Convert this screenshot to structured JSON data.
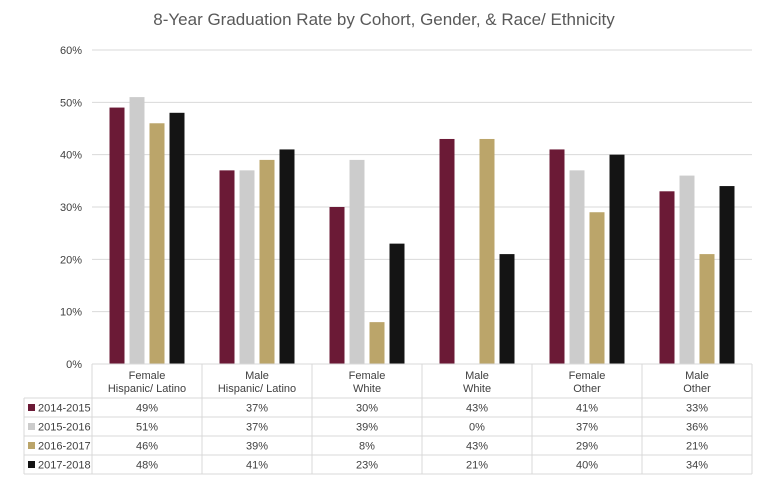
{
  "chart_data": {
    "type": "bar",
    "title": "8-Year Graduation Rate by Cohort, Gender, & Race/ Ethnicity",
    "xlabel": "",
    "ylabel": "",
    "ylim": [
      0,
      60
    ],
    "yticks": [
      "0%",
      "10%",
      "20%",
      "30%",
      "40%",
      "50%",
      "60%"
    ],
    "grid": true,
    "legend": "data-table",
    "categories": [
      [
        "Female",
        "Hispanic/ Latino"
      ],
      [
        "Male",
        "Hispanic/ Latino"
      ],
      [
        "Female",
        "White"
      ],
      [
        "Male",
        "White"
      ],
      [
        "Female",
        "Other"
      ],
      [
        "Male",
        "Other"
      ]
    ],
    "series": [
      {
        "name": "2014-2015",
        "color": "#6b1a36",
        "values": [
          49,
          37,
          30,
          43,
          41,
          33
        ],
        "labels": [
          "49%",
          "37%",
          "30%",
          "43%",
          "41%",
          "33%"
        ]
      },
      {
        "name": "2015-2016",
        "color": "#cccccc",
        "values": [
          51,
          37,
          39,
          0,
          37,
          36
        ],
        "labels": [
          "51%",
          "37%",
          "39%",
          "0%",
          "37%",
          "36%"
        ]
      },
      {
        "name": "2016-2017",
        "color": "#bba56a",
        "values": [
          46,
          39,
          8,
          43,
          29,
          21
        ],
        "labels": [
          "46%",
          "39%",
          "8%",
          "43%",
          "29%",
          "21%"
        ]
      },
      {
        "name": "2017-2018",
        "color": "#141414",
        "values": [
          48,
          41,
          23,
          21,
          40,
          34
        ],
        "labels": [
          "48%",
          "41%",
          "23%",
          "21%",
          "40%",
          "34%"
        ]
      }
    ]
  }
}
